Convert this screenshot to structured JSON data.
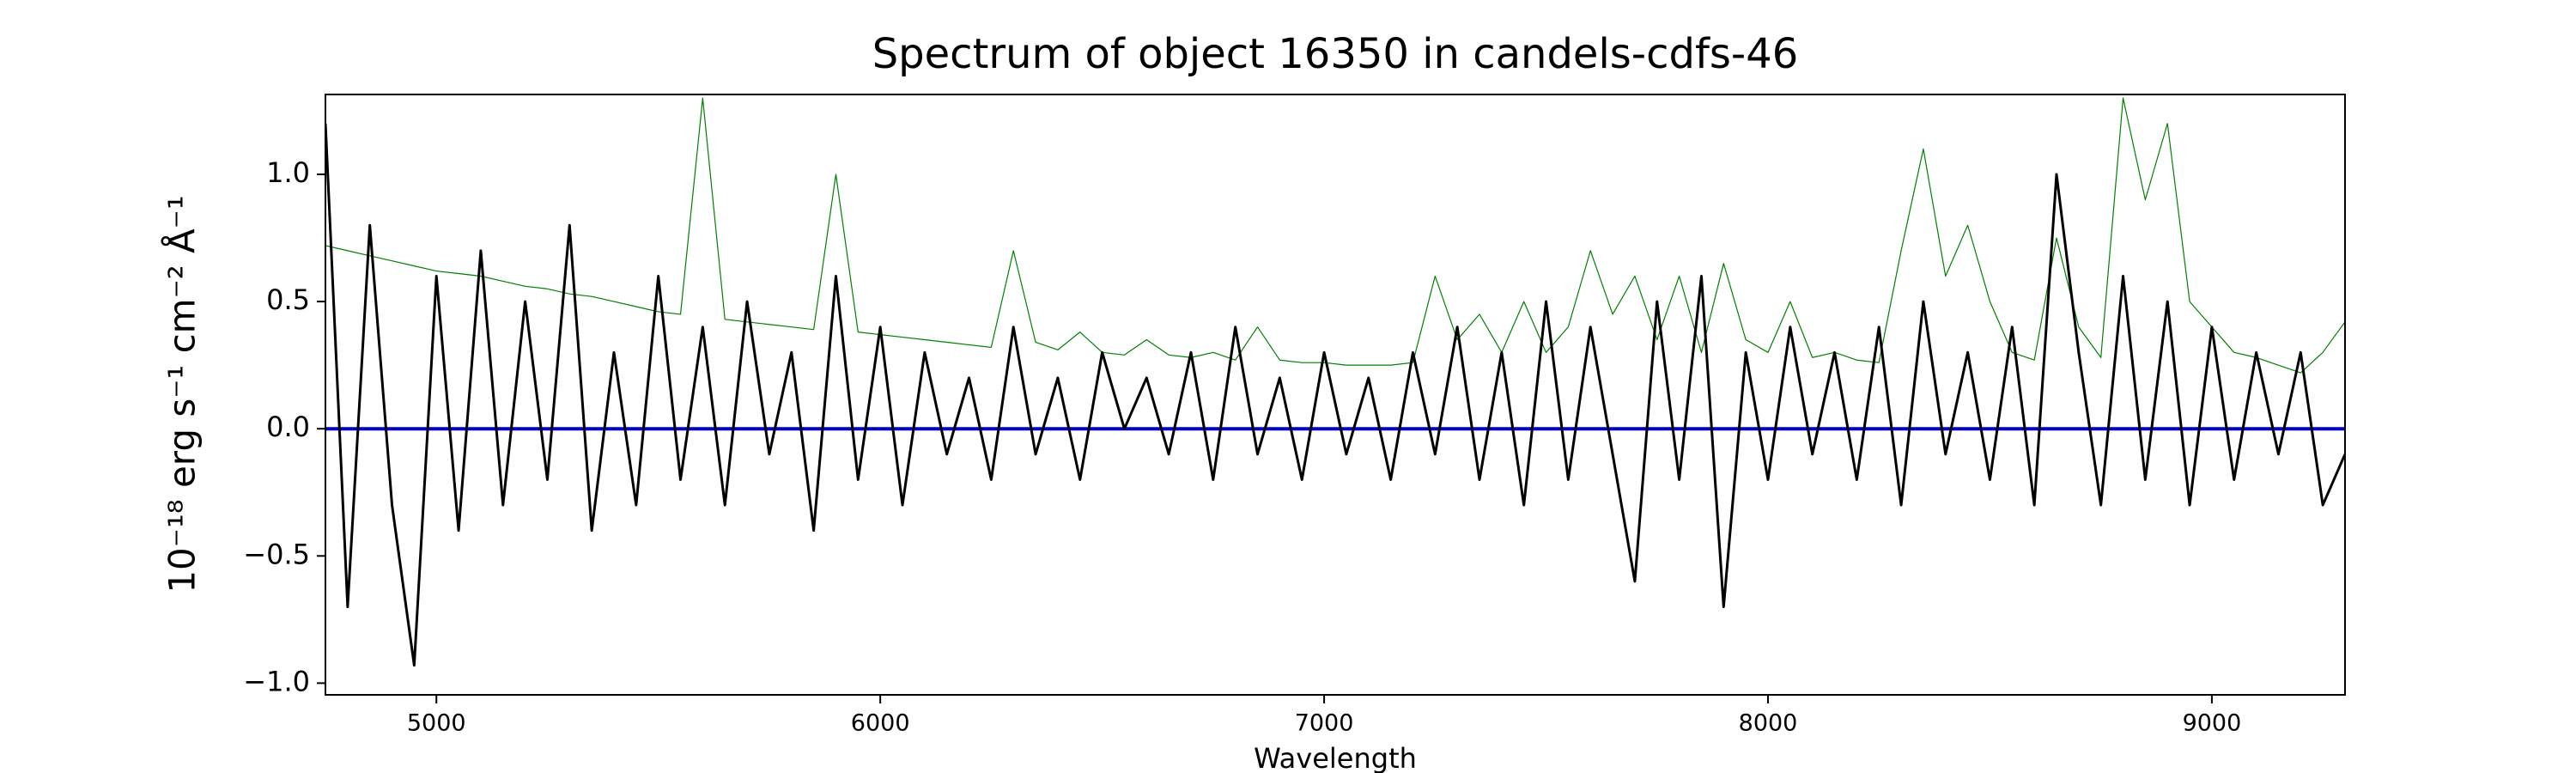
{
  "chart_data": {
    "type": "line",
    "title": "Spectrum of object 16350 in candels-cdfs-46",
    "xlabel": "Wavelength",
    "ylabel": "10⁻¹⁸ erg s⁻¹ cm⁻² Å⁻¹",
    "xlim": [
      4750,
      9300
    ],
    "ylim": [
      -1.046,
      1.314
    ],
    "xticks": [
      5000,
      6000,
      7000,
      8000,
      9000
    ],
    "yticks": [
      {
        "value": -1,
        "label": "−1.0"
      },
      {
        "value": -0.5,
        "label": "−0.5"
      },
      {
        "value": 0,
        "label": "0.0"
      },
      {
        "value": 0.5,
        "label": "0.5"
      },
      {
        "value": 1,
        "label": "1.0"
      }
    ],
    "x": [
      4750,
      4800,
      4850,
      4900,
      4950,
      5000,
      5050,
      5100,
      5150,
      5200,
      5250,
      5300,
      5350,
      5400,
      5450,
      5500,
      5550,
      5600,
      5650,
      5700,
      5750,
      5800,
      5850,
      5900,
      5950,
      6000,
      6050,
      6100,
      6150,
      6200,
      6250,
      6300,
      6350,
      6400,
      6450,
      6500,
      6550,
      6600,
      6650,
      6700,
      6750,
      6800,
      6850,
      6900,
      6950,
      7000,
      7050,
      7100,
      7150,
      7200,
      7250,
      7300,
      7350,
      7400,
      7450,
      7500,
      7550,
      7600,
      7650,
      7700,
      7750,
      7800,
      7850,
      7900,
      7950,
      8000,
      8050,
      8100,
      8150,
      8200,
      8250,
      8300,
      8350,
      8400,
      8450,
      8500,
      8550,
      8600,
      8650,
      8700,
      8750,
      8800,
      8850,
      8900,
      8950,
      9000,
      9050,
      9100,
      9150,
      9200,
      9250,
      9300
    ],
    "series": [
      {
        "color": "#008000",
        "width": 1.2,
        "values": [
          0.72,
          0.7,
          0.68,
          0.66,
          0.64,
          0.62,
          0.61,
          0.6,
          0.58,
          0.56,
          0.55,
          0.53,
          0.52,
          0.5,
          0.48,
          0.46,
          0.45,
          1.3,
          0.43,
          0.42,
          0.41,
          0.4,
          0.39,
          1.0,
          0.38,
          0.37,
          0.36,
          0.35,
          0.34,
          0.33,
          0.32,
          0.7,
          0.34,
          0.31,
          0.38,
          0.3,
          0.29,
          0.35,
          0.29,
          0.28,
          0.3,
          0.27,
          0.4,
          0.27,
          0.26,
          0.26,
          0.25,
          0.25,
          0.25,
          0.26,
          0.6,
          0.35,
          0.45,
          0.3,
          0.5,
          0.3,
          0.4,
          0.7,
          0.45,
          0.6,
          0.35,
          0.6,
          0.3,
          0.65,
          0.35,
          0.3,
          0.5,
          0.28,
          0.3,
          0.27,
          0.26,
          0.7,
          1.1,
          0.6,
          0.8,
          0.5,
          0.3,
          0.27,
          0.75,
          0.4,
          0.28,
          1.3,
          0.9,
          1.2,
          0.5,
          0.4,
          0.3,
          0.28,
          0.25,
          0.22,
          0.3,
          0.42
        ]
      },
      {
        "color": "#0000cc",
        "width": 4,
        "values": [
          0,
          0,
          0,
          0,
          0,
          0,
          0,
          0,
          0,
          0,
          0,
          0,
          0,
          0,
          0,
          0,
          0,
          0,
          0,
          0,
          0,
          0,
          0,
          0,
          0,
          0,
          0,
          0,
          0,
          0,
          0,
          0,
          0,
          0,
          0,
          0,
          0,
          0,
          0,
          0,
          0,
          0,
          0,
          0,
          0,
          0,
          0,
          0,
          0,
          0,
          0,
          0,
          0,
          0,
          0,
          0,
          0,
          0,
          0,
          0,
          0,
          0,
          0,
          0,
          0,
          0,
          0,
          0,
          0,
          0,
          0,
          0,
          0,
          0,
          0,
          0,
          0,
          0,
          0,
          0,
          0,
          0,
          0,
          0,
          0,
          0,
          0,
          0,
          0,
          0,
          0,
          0
        ]
      },
      {
        "color": "#000000",
        "width": 3,
        "values": [
          1.2,
          -0.7,
          0.8,
          -0.3,
          -0.93,
          0.6,
          -0.4,
          0.7,
          -0.3,
          0.5,
          -0.2,
          0.8,
          -0.4,
          0.3,
          -0.3,
          0.6,
          -0.2,
          0.4,
          -0.3,
          0.5,
          -0.1,
          0.3,
          -0.4,
          0.6,
          -0.2,
          0.4,
          -0.3,
          0.3,
          -0.1,
          0.2,
          -0.2,
          0.4,
          -0.1,
          0.2,
          -0.2,
          0.3,
          0.0,
          0.2,
          -0.1,
          0.3,
          -0.2,
          0.4,
          -0.1,
          0.2,
          -0.2,
          0.3,
          -0.1,
          0.2,
          -0.2,
          0.3,
          -0.1,
          0.4,
          -0.2,
          0.3,
          -0.3,
          0.5,
          -0.2,
          0.4,
          -0.1,
          -0.6,
          0.5,
          -0.2,
          0.6,
          -0.7,
          0.3,
          -0.2,
          0.4,
          -0.1,
          0.3,
          -0.2,
          0.4,
          -0.3,
          0.5,
          -0.1,
          0.3,
          -0.2,
          0.4,
          -0.3,
          1.0,
          0.3,
          -0.3,
          0.6,
          -0.2,
          0.5,
          -0.3,
          0.4,
          -0.2,
          0.3,
          -0.1,
          0.3,
          -0.3,
          -0.1
        ]
      }
    ]
  }
}
